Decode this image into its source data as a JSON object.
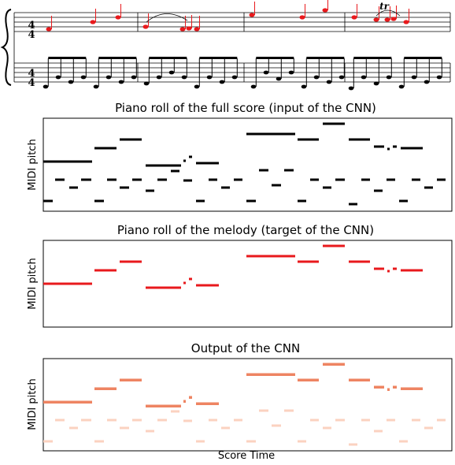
{
  "score": {
    "time_signatures": [
      [
        "4",
        "4"
      ],
      [
        "4",
        "4"
      ]
    ],
    "trill": "tr"
  },
  "panels": [
    {
      "title": "Piano roll of the full score (input of the CNN)",
      "y_label": "MIDI pitch"
    },
    {
      "title": "Piano roll of the melody (target of the CNN)",
      "y_label": "MIDI pitch"
    },
    {
      "title": "Output of the CNN",
      "y_label": "MIDI pitch"
    }
  ],
  "x_label": "Score Time"
}
